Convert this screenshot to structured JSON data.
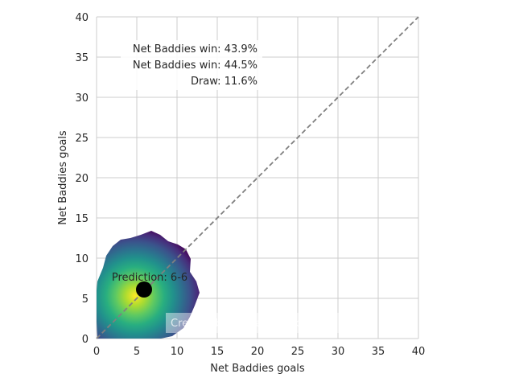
{
  "chart_data": {
    "type": "heatmap",
    "subtype": "kde-contour-score-prediction",
    "xlabel": "Net Baddies goals",
    "ylabel": "Net Baddies goals",
    "xlim": [
      0,
      40
    ],
    "ylim": [
      0,
      40
    ],
    "xticks": [
      0,
      5,
      10,
      15,
      20,
      25,
      30,
      35,
      40
    ],
    "yticks": [
      0,
      5,
      10,
      15,
      20,
      25,
      30,
      35,
      40
    ],
    "grid": true,
    "diagonal_line": {
      "from": [
        0,
        0
      ],
      "to": [
        40,
        40
      ],
      "style": "dashed",
      "color": "#808080"
    },
    "density_center": [
      6,
      6
    ],
    "density_extent": {
      "x_min": 0,
      "x_max": 13,
      "y_min": 0,
      "y_max": 13
    },
    "colormap": "viridis",
    "prediction_point": {
      "x": 6,
      "y": 6
    },
    "prediction_label": "Prediction: 6-6",
    "probabilities": [
      {
        "label": "Net Baddies win: 43.9%"
      },
      {
        "label": "Net Baddies win: 44.5%"
      },
      {
        "label": "Draw: 11.6%"
      }
    ],
    "watermark": "Created by Michael Nefiodovas"
  },
  "colors": {
    "grid": "#cccccc",
    "diagonal": "#808080",
    "point": "#000000",
    "viridis": [
      "#440154",
      "#472d7b",
      "#3b528b",
      "#2c728e",
      "#21918c",
      "#28ae80",
      "#5ec962",
      "#addc30",
      "#fde725"
    ]
  }
}
